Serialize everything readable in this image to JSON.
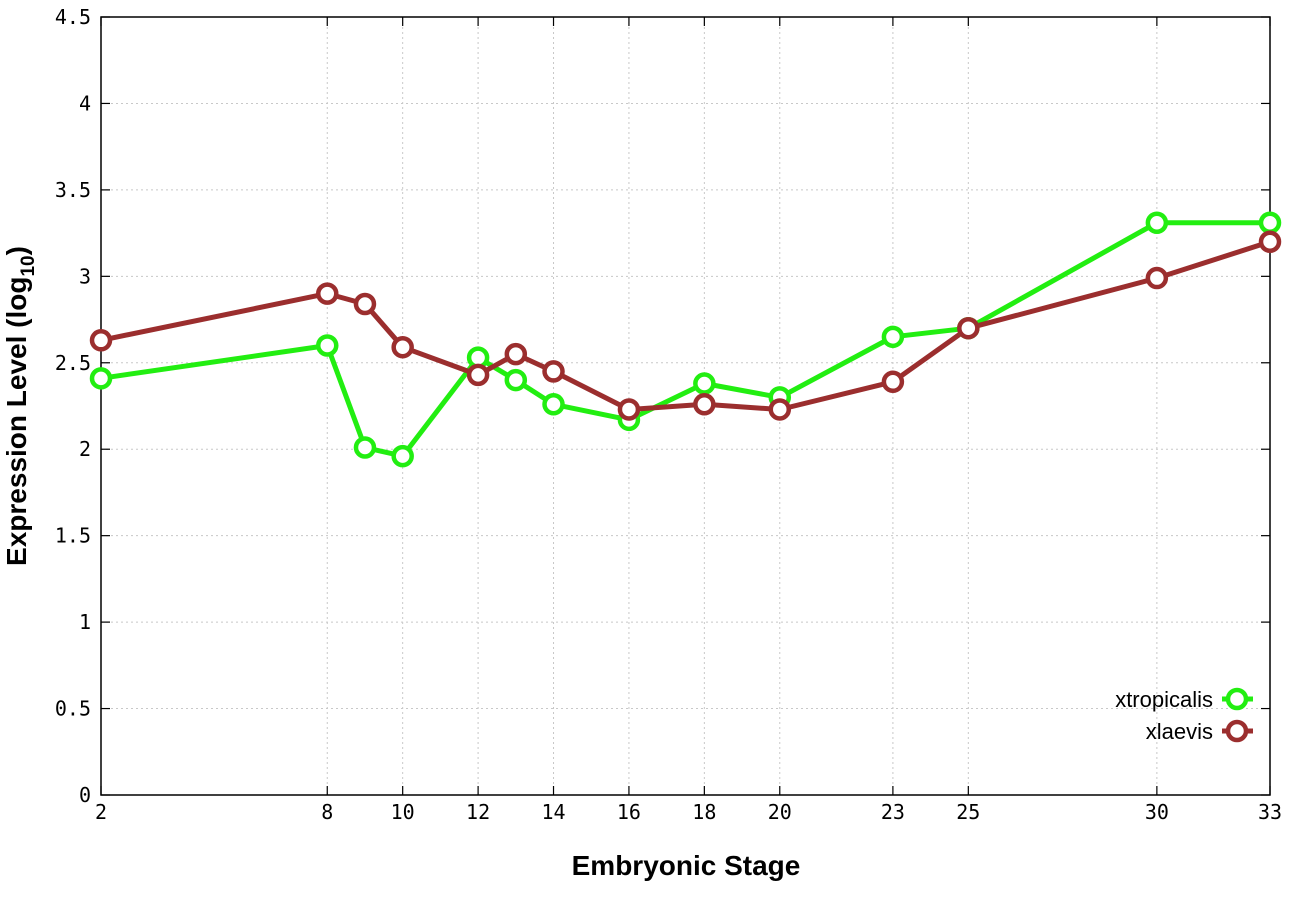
{
  "chart_data": {
    "type": "line",
    "xlabel": "Embryonic Stage",
    "ylabel_main": "Expression Level (log",
    "ylabel_sub": "10",
    "ylabel_close": ")",
    "x_ticks": [
      2,
      8,
      10,
      12,
      14,
      16,
      18,
      20,
      23,
      25,
      30,
      33
    ],
    "x_tick_labels": [
      "2",
      "8",
      "10",
      "12",
      "14",
      "16",
      "18",
      "20",
      "23",
      "25",
      "30",
      "33"
    ],
    "y_ticks": [
      0,
      0.5,
      1,
      1.5,
      2,
      2.5,
      3,
      3.5,
      4,
      4.5
    ],
    "y_tick_labels": [
      "0",
      "0.5",
      "1",
      "1.5",
      "2",
      "2.5",
      "3",
      "3.5",
      "4",
      "4.5"
    ],
    "xlim": [
      2,
      33
    ],
    "ylim": [
      0,
      4.5
    ],
    "grid": true,
    "legend_position": "bottom-right",
    "x": [
      2,
      8,
      9,
      10,
      12,
      13,
      14,
      16,
      18,
      20,
      23,
      25,
      30,
      33
    ],
    "series": [
      {
        "name": "xtropicalis",
        "color": "#22ee11",
        "values": [
          2.41,
          2.6,
          2.01,
          1.96,
          2.53,
          2.4,
          2.26,
          2.17,
          2.38,
          2.3,
          2.65,
          2.7,
          3.31,
          3.31
        ]
      },
      {
        "name": "xlaevis",
        "color": "#9b2e2e",
        "values": [
          2.63,
          2.9,
          2.84,
          2.59,
          2.43,
          2.55,
          2.45,
          2.23,
          2.26,
          2.23,
          2.39,
          2.7,
          2.99,
          3.2
        ]
      }
    ]
  }
}
